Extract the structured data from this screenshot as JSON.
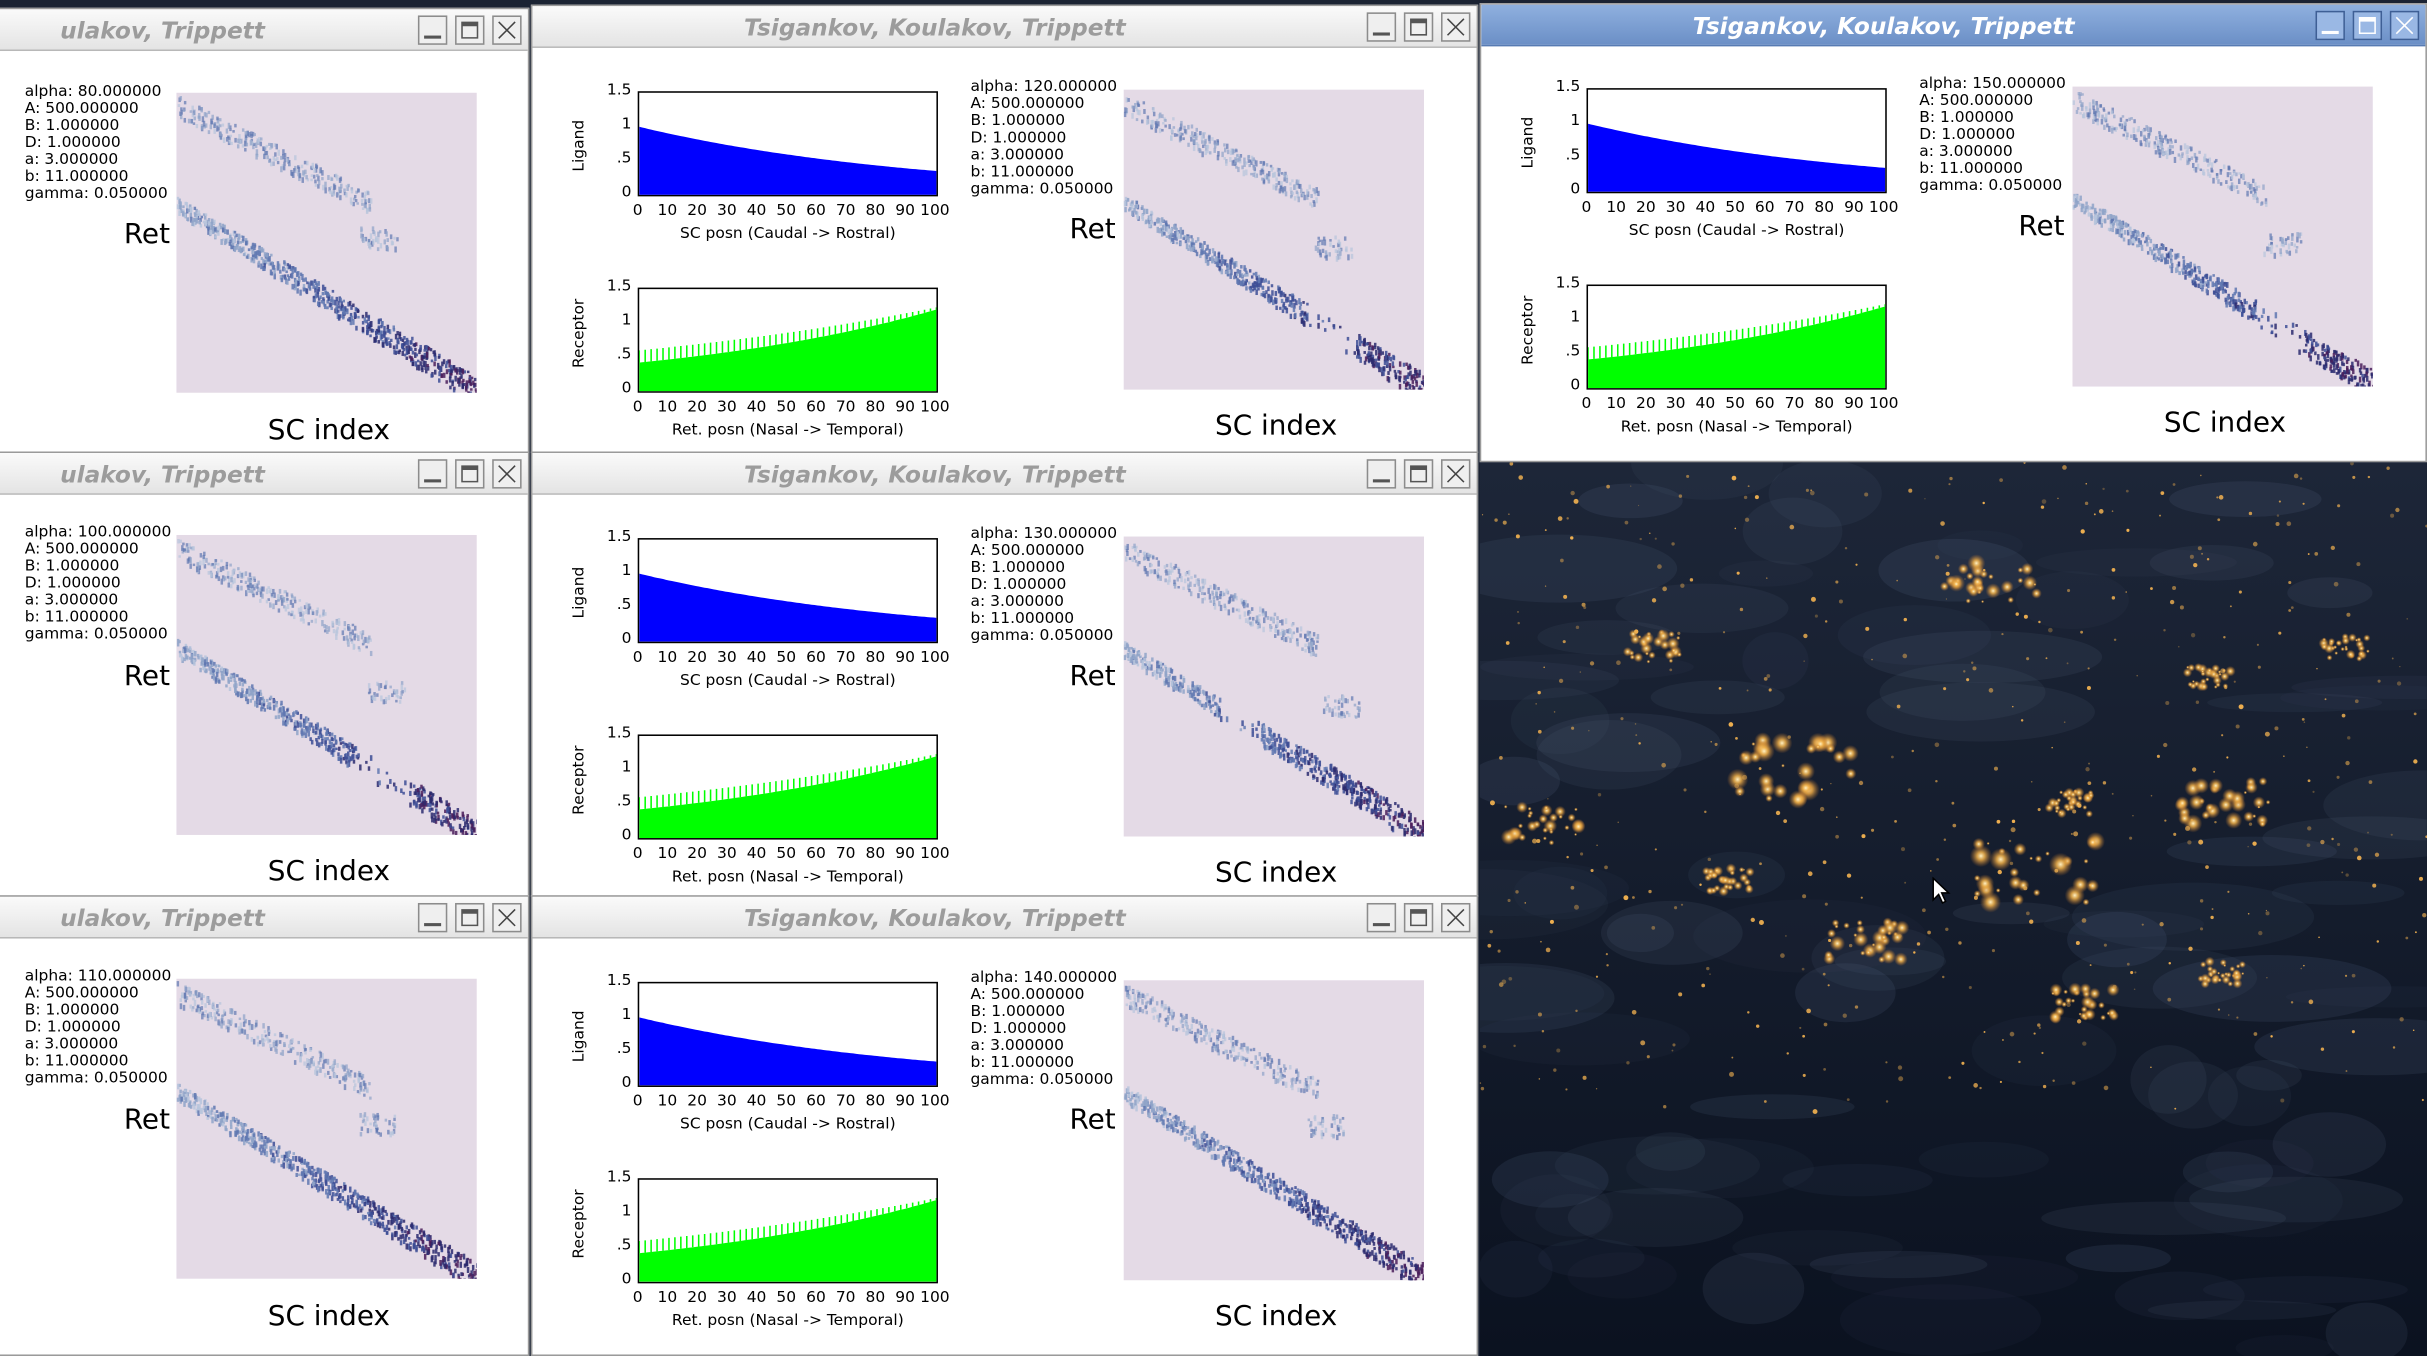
{
  "window_title": "Tsigankov, Koulakov, Trippett",
  "left_title_visible": "ulakov, Trippett",
  "label_ret": "Ret",
  "label_sc": "SC index",
  "ligand_ylabel": "Ligand",
  "receptor_ylabel": "Receptor",
  "ligand_xlabel": "SC posn (Caudal -> Rostral)",
  "receptor_xlabel": "Ret. posn (Nasal -> Temporal)",
  "y_ticks": [
    "1.5",
    "1",
    ".5",
    "0"
  ],
  "x_ticks": [
    "0",
    "10",
    "20",
    "30",
    "40",
    "50",
    "60",
    "70",
    "80",
    "90",
    "100"
  ],
  "colors": {
    "ligand": "#0000ff",
    "receptor": "#00ff00",
    "plot_bg": "#e4dae6",
    "titlebar_active": "#7a9bd0"
  },
  "windows": [
    {
      "params": [
        "alpha: 80.000000",
        "A: 500.000000",
        "B: 1.000000",
        "D: 1.000000",
        "a: 3.000000",
        "b: 11.000000",
        "gamma: 0.050000"
      ]
    },
    {
      "params": [
        "alpha: 100.000000",
        "A: 500.000000",
        "B: 1.000000",
        "D: 1.000000",
        "a: 3.000000",
        "b: 11.000000",
        "gamma: 0.050000"
      ]
    },
    {
      "params": [
        "alpha: 110.000000",
        "A: 500.000000",
        "B: 1.000000",
        "D: 1.000000",
        "a: 3.000000",
        "b: 11.000000",
        "gamma: 0.050000"
      ]
    },
    {
      "params": [
        "alpha: 120.000000",
        "A: 500.000000",
        "B: 1.000000",
        "D: 1.000000",
        "a: 3.000000",
        "b: 11.000000",
        "gamma: 0.050000"
      ]
    },
    {
      "params": [
        "alpha: 130.000000",
        "A: 500.000000",
        "B: 1.000000",
        "D: 1.000000",
        "a: 3.000000",
        "b: 11.000000",
        "gamma: 0.050000"
      ]
    },
    {
      "params": [
        "alpha: 140.000000",
        "A: 500.000000",
        "B: 1.000000",
        "D: 1.000000",
        "a: 3.000000",
        "b: 11.000000",
        "gamma: 0.050000"
      ]
    },
    {
      "params": [
        "alpha: 150.000000",
        "A: 500.000000",
        "B: 1.000000",
        "D: 1.000000",
        "a: 3.000000",
        "b: 11.000000",
        "gamma: 0.050000"
      ]
    }
  ]
}
